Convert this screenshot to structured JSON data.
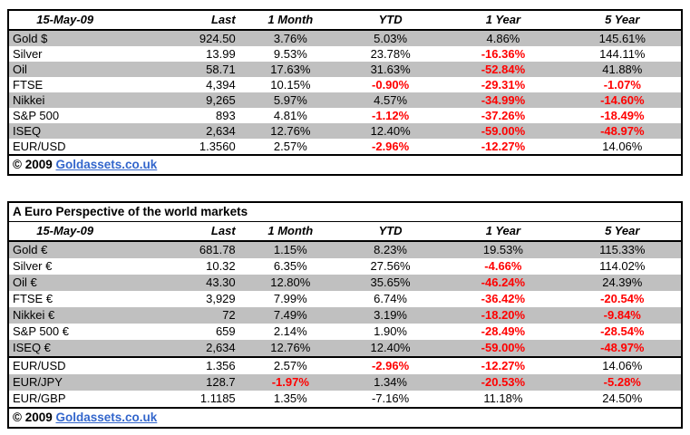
{
  "columns": [
    "15-May-09",
    "Last",
    "1 Month",
    "YTD",
    "1 Year",
    "5 Year"
  ],
  "footer": {
    "copyright": "© 2009",
    "link_label": "Goldassets.co.uk"
  },
  "colors": {
    "shaded_row": "#C0C0C0",
    "negative_value": "#FF0000",
    "link_blue": "#3366CC",
    "border": "#000000",
    "page_background": "#FFFFFF"
  },
  "tables": {
    "t1": {
      "rows": [
        {
          "label": "Gold $",
          "cells": [
            "924.50",
            "3.76%",
            "5.03%",
            "4.86%",
            "145.61%"
          ],
          "red": [
            false,
            false,
            false,
            false,
            false
          ],
          "shaded": true
        },
        {
          "label": "Silver",
          "cells": [
            "13.99",
            "9.53%",
            "23.78%",
            "-16.36%",
            "144.11%"
          ],
          "red": [
            false,
            false,
            false,
            true,
            false
          ],
          "shaded": false
        },
        {
          "label": "Oil",
          "cells": [
            "58.71",
            "17.63%",
            "31.63%",
            "-52.84%",
            "41.88%"
          ],
          "red": [
            false,
            false,
            false,
            true,
            false
          ],
          "shaded": true
        },
        {
          "label": "FTSE",
          "cells": [
            "4,394",
            "10.15%",
            "-0.90%",
            "-29.31%",
            "-1.07%"
          ],
          "red": [
            false,
            false,
            true,
            true,
            true
          ],
          "shaded": false
        },
        {
          "label": "Nikkei",
          "cells": [
            "9,265",
            "5.97%",
            "4.57%",
            "-34.99%",
            "-14.60%"
          ],
          "red": [
            false,
            false,
            false,
            true,
            true
          ],
          "shaded": true
        },
        {
          "label": "S&P 500",
          "cells": [
            "893",
            "4.81%",
            "-1.12%",
            "-37.26%",
            "-18.49%"
          ],
          "red": [
            false,
            false,
            true,
            true,
            true
          ],
          "shaded": false
        },
        {
          "label": "ISEQ",
          "cells": [
            "2,634",
            "12.76%",
            "12.40%",
            "-59.00%",
            "-48.97%"
          ],
          "red": [
            false,
            false,
            false,
            true,
            true
          ],
          "shaded": true
        },
        {
          "label": "EUR/USD",
          "cells": [
            "1.3560",
            "2.57%",
            "-2.96%",
            "-12.27%",
            "14.06%"
          ],
          "red": [
            false,
            false,
            true,
            true,
            false
          ],
          "shaded": false
        }
      ]
    },
    "t2": {
      "title": "A Euro Perspective of the world markets",
      "rows": [
        {
          "label": "Gold €",
          "cells": [
            "681.78",
            "1.15%",
            "8.23%",
            "19.53%",
            "115.33%"
          ],
          "red": [
            false,
            false,
            false,
            false,
            false
          ],
          "shaded": true
        },
        {
          "label": "Silver €",
          "cells": [
            "10.32",
            "6.35%",
            "27.56%",
            "-4.66%",
            "114.02%"
          ],
          "red": [
            false,
            false,
            false,
            true,
            false
          ],
          "shaded": false
        },
        {
          "label": "Oil €",
          "cells": [
            "43.30",
            "12.80%",
            "35.65%",
            "-46.24%",
            "24.39%"
          ],
          "red": [
            false,
            false,
            false,
            true,
            false
          ],
          "shaded": true
        },
        {
          "label": "FTSE €",
          "cells": [
            "3,929",
            "7.99%",
            "6.74%",
            "-36.42%",
            "-20.54%"
          ],
          "red": [
            false,
            false,
            false,
            true,
            true
          ],
          "shaded": false
        },
        {
          "label": "Nikkei €",
          "cells": [
            "72",
            "7.49%",
            "3.19%",
            "-18.20%",
            "-9.84%"
          ],
          "red": [
            false,
            false,
            false,
            true,
            true
          ],
          "shaded": true
        },
        {
          "label": "S&P 500 €",
          "cells": [
            "659",
            "2.14%",
            "1.90%",
            "-28.49%",
            "-28.54%"
          ],
          "red": [
            false,
            false,
            false,
            true,
            true
          ],
          "shaded": false
        },
        {
          "label": "ISEQ €",
          "cells": [
            "2,634",
            "12.76%",
            "12.40%",
            "-59.00%",
            "-48.97%"
          ],
          "red": [
            false,
            false,
            false,
            true,
            true
          ],
          "shaded": true
        }
      ],
      "fx_rows": [
        {
          "label": "EUR/USD",
          "cells": [
            "1.356",
            "2.57%",
            "-2.96%",
            "-12.27%",
            "14.06%"
          ],
          "red": [
            false,
            false,
            true,
            true,
            false
          ],
          "shaded": false
        },
        {
          "label": "EUR/JPY",
          "cells": [
            "128.7",
            "-1.97%",
            "1.34%",
            "-20.53%",
            "-5.28%"
          ],
          "red": [
            false,
            true,
            false,
            true,
            true
          ],
          "shaded": true
        },
        {
          "label": "EUR/GBP",
          "cells": [
            "1.1185",
            "1.35%",
            "-7.16%",
            "11.18%",
            "24.50%"
          ],
          "red": [
            false,
            false,
            false,
            false,
            false
          ],
          "shaded": false
        }
      ]
    }
  }
}
